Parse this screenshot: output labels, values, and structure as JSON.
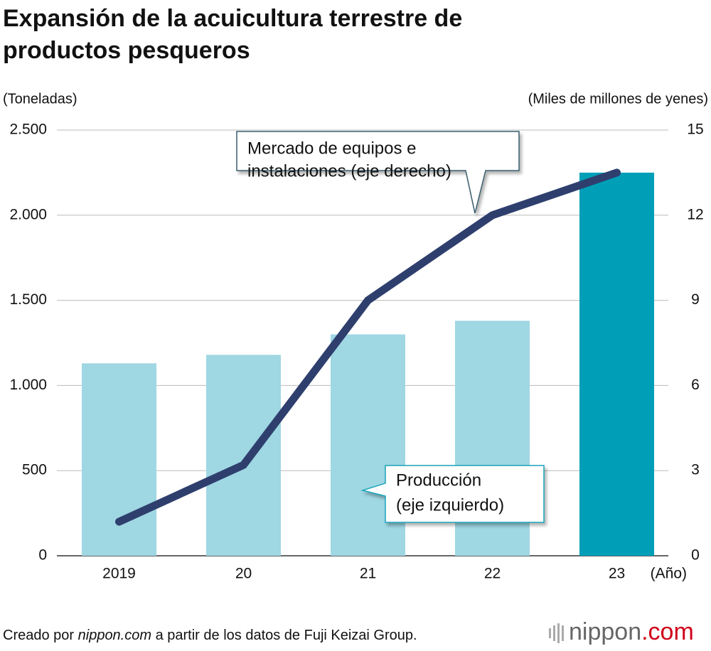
{
  "chart_data": {
    "type": "bar",
    "title_lines": [
      "Expansión de la acuicultura terrestre de",
      "productos pesqueros"
    ],
    "ylabel": "(Toneladas)",
    "y2label": "(Miles de millones de yenes)",
    "xlabel": "(Año)",
    "categories": [
      "2019",
      "20",
      "21",
      "22",
      "23"
    ],
    "series": [
      {
        "type": "bar",
        "colors": [
          "#9fd7e3",
          "#9fd7e3",
          "#9fd7e3",
          "#9fd7e3",
          "#009fb7"
        ],
        "values": [
          1130,
          1180,
          1300,
          1380,
          2250
        ]
      },
      {
        "type": "line",
        "axis": "y2",
        "color": "#2e3f6e",
        "values": [
          1.2,
          3.2,
          9,
          12,
          13.5
        ]
      }
    ],
    "annotations": [
      {
        "lines": [
          "Mercado de equipos e",
          "instalaciones (eje derecho)"
        ]
      },
      {
        "lines": [
          "Producción",
          "(eje izquierdo)"
        ]
      }
    ],
    "ylim": [
      0,
      2500
    ],
    "yticks": [
      0,
      500,
      {
        "value": 1000,
        "label": "1.000"
      },
      {
        "value": 1500,
        "label": "1.500"
      },
      {
        "value": 2000,
        "label": "2.000"
      },
      {
        "value": 2500,
        "label": "2.500"
      }
    ],
    "y2lim": [
      0,
      15
    ],
    "y2ticks": [
      0,
      3,
      6,
      9,
      12,
      15
    ],
    "grid": true,
    "source_parts": [
      "Creado por ",
      "nippon.com",
      " a partir de los datos de Fuji Keizai Group."
    ],
    "logo": [
      "nippon",
      ".com"
    ]
  }
}
